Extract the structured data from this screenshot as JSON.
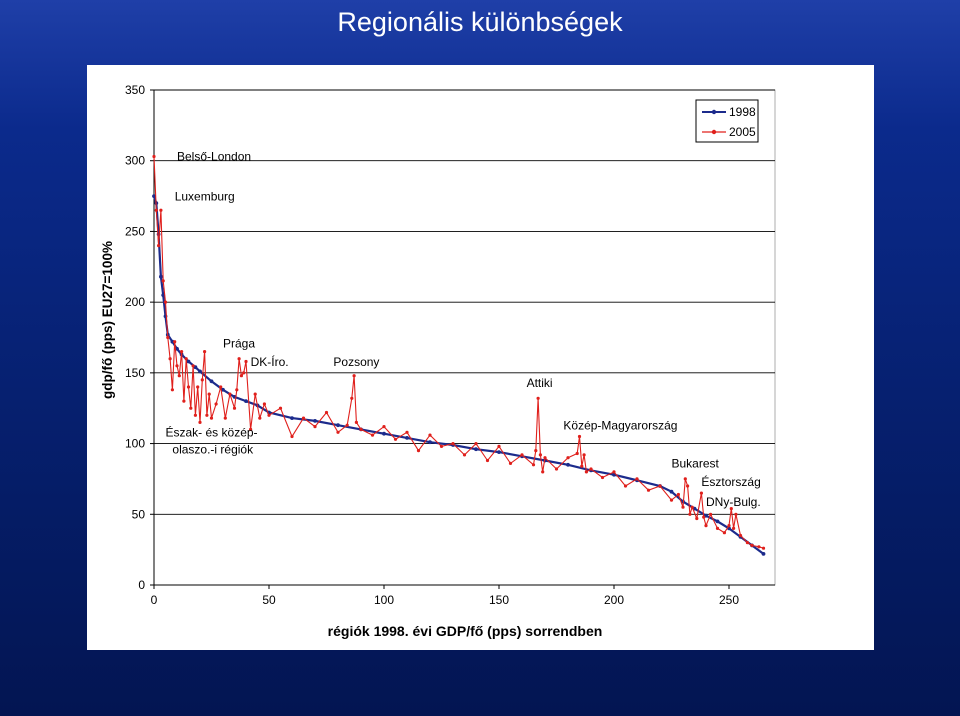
{
  "slide": {
    "title": "Regionális különbségek"
  },
  "colors": {
    "series_1998": "#1c2b8c",
    "series_2005": "#e0201c",
    "background": "#0b2a8c"
  },
  "chart_data": {
    "type": "line",
    "title": "",
    "xlabel": "régiók 1998. évi GDP/fő (pps) sorrendben",
    "ylabel": "gdp/fő (pps) EU27=100%",
    "xlim": [
      0,
      270
    ],
    "ylim": [
      0,
      350
    ],
    "x_ticks": [
      "0",
      "50",
      "100",
      "150",
      "200",
      "250"
    ],
    "y_ticks": [
      "0",
      "50",
      "100",
      "150",
      "200",
      "250",
      "300",
      "350"
    ],
    "grid": "horizontal",
    "legend": "top-right",
    "series": [
      {
        "name": "1998",
        "color": "#1c2b8c",
        "x": [
          0,
          1,
          2,
          3,
          4,
          5,
          6,
          8,
          10,
          12,
          15,
          18,
          20,
          25,
          30,
          35,
          40,
          45,
          50,
          60,
          70,
          80,
          90,
          100,
          110,
          120,
          130,
          140,
          150,
          160,
          170,
          180,
          190,
          200,
          210,
          220,
          225,
          230,
          235,
          240,
          245,
          250,
          255,
          260,
          265
        ],
        "values": [
          275,
          270,
          248,
          218,
          205,
          190,
          177,
          172,
          167,
          163,
          158,
          154,
          151,
          144,
          138,
          133,
          130,
          127,
          122,
          118,
          116,
          113,
          110,
          107,
          104,
          101,
          99,
          96,
          94,
          91,
          88,
          85,
          81,
          78,
          74,
          70,
          66,
          59,
          54,
          49,
          45,
          40,
          34,
          28,
          22
        ]
      },
      {
        "name": "2005",
        "color": "#e0201c",
        "x": [
          0,
          1,
          2,
          3,
          4,
          5,
          6,
          7,
          8,
          9,
          10,
          11,
          12,
          13,
          14,
          15,
          16,
          17,
          18,
          19,
          20,
          21,
          22,
          23,
          24,
          25,
          27,
          29,
          31,
          33,
          35,
          36,
          37,
          38,
          39,
          40,
          42,
          44,
          46,
          48,
          50,
          55,
          60,
          65,
          70,
          75,
          80,
          84,
          86,
          87,
          88,
          90,
          95,
          100,
          105,
          110,
          115,
          120,
          125,
          130,
          135,
          140,
          145,
          150,
          155,
          160,
          165,
          166,
          167,
          168,
          169,
          170,
          175,
          180,
          184,
          185,
          186,
          187,
          188,
          190,
          195,
          200,
          205,
          210,
          215,
          220,
          225,
          228,
          230,
          231,
          232,
          233,
          234,
          236,
          238,
          239,
          240,
          242,
          245,
          248,
          250,
          251,
          252,
          253,
          255,
          258,
          260,
          263,
          265
        ],
        "values": [
          303,
          265,
          240,
          265,
          215,
          200,
          175,
          160,
          138,
          172,
          155,
          148,
          165,
          130,
          160,
          140,
          125,
          155,
          120,
          140,
          115,
          145,
          165,
          120,
          135,
          118,
          128,
          140,
          118,
          135,
          125,
          138,
          160,
          148,
          150,
          158,
          110,
          135,
          118,
          128,
          120,
          125,
          105,
          118,
          112,
          122,
          108,
          113,
          132,
          148,
          115,
          110,
          106,
          112,
          103,
          108,
          95,
          106,
          98,
          100,
          92,
          100,
          88,
          98,
          86,
          92,
          85,
          95,
          132,
          92,
          80,
          90,
          82,
          90,
          93,
          105,
          84,
          92,
          80,
          82,
          76,
          80,
          70,
          75,
          67,
          70,
          60,
          64,
          55,
          75,
          70,
          50,
          55,
          47,
          65,
          48,
          42,
          50,
          40,
          37,
          42,
          54,
          40,
          50,
          35,
          30,
          28,
          27,
          26
        ]
      }
    ],
    "annotations": [
      {
        "text": "Belső-London",
        "x": 10,
        "y": 300
      },
      {
        "text": "Luxemburg",
        "x": 9,
        "y": 272
      },
      {
        "text": "Prága",
        "x": 30,
        "y": 168
      },
      {
        "text": "DK-Íro.",
        "x": 42,
        "y": 155
      },
      {
        "text": "Pozsony",
        "x": 78,
        "y": 155
      },
      {
        "text": "Attiki",
        "x": 162,
        "y": 140
      },
      {
        "text": "Közép-Magyarország",
        "x": 178,
        "y": 110
      },
      {
        "text": "Észak- és közép-",
        "x": 5,
        "y": 105
      },
      {
        "text": "olaszo.-i régiók",
        "x": 8,
        "y": 93
      },
      {
        "text": "Bukarest",
        "x": 225,
        "y": 83
      },
      {
        "text": "Észtország",
        "x": 238,
        "y": 70
      },
      {
        "text": "DNy-Bulg.",
        "x": 240,
        "y": 56
      }
    ]
  }
}
